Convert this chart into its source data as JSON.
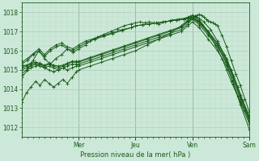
{
  "xlabel": "Pression niveau de la mer( hPa )",
  "bg_color": "#cce8d8",
  "grid_color_major": "#aaccbb",
  "grid_color_minor": "#bbddc9",
  "line_color": "#1a5c1a",
  "ylim": [
    1011.5,
    1018.5
  ],
  "xlim": [
    0.0,
    1.0
  ],
  "day_labels": [
    "Mer",
    "Jeu",
    "Ven",
    "Sam"
  ],
  "day_positions": [
    0.25,
    0.5,
    0.75,
    1.0
  ],
  "lines": [
    {
      "x": [
        0.0,
        0.02,
        0.04,
        0.06,
        0.08,
        0.1,
        0.12,
        0.14,
        0.16,
        0.18,
        0.2,
        0.22,
        0.24,
        0.25,
        0.3,
        0.35,
        0.4,
        0.45,
        0.5,
        0.55,
        0.6,
        0.65,
        0.7,
        0.73,
        0.75,
        0.78,
        0.82,
        0.86,
        0.9,
        0.93,
        0.96,
        1.0
      ],
      "y": [
        1013.3,
        1013.8,
        1014.1,
        1014.4,
        1014.2,
        1014.5,
        1014.3,
        1014.1,
        1014.3,
        1014.5,
        1014.3,
        1014.6,
        1014.9,
        1015.0,
        1015.2,
        1015.4,
        1015.6,
        1015.8,
        1016.0,
        1016.3,
        1016.6,
        1016.9,
        1017.3,
        1017.6,
        1017.85,
        1017.6,
        1017.0,
        1016.3,
        1015.3,
        1014.3,
        1013.2,
        1011.9
      ]
    },
    {
      "x": [
        0.0,
        0.02,
        0.04,
        0.06,
        0.08,
        0.1,
        0.12,
        0.14,
        0.16,
        0.18,
        0.2,
        0.22,
        0.24,
        0.25,
        0.3,
        0.35,
        0.4,
        0.45,
        0.5,
        0.55,
        0.6,
        0.65,
        0.7,
        0.73,
        0.75,
        0.78,
        0.82,
        0.86,
        0.9,
        0.93,
        0.96,
        1.0
      ],
      "y": [
        1014.8,
        1015.0,
        1015.1,
        1015.2,
        1015.3,
        1015.1,
        1015.0,
        1014.9,
        1015.0,
        1015.1,
        1015.0,
        1015.1,
        1015.2,
        1015.2,
        1015.4,
        1015.6,
        1015.8,
        1016.0,
        1016.2,
        1016.4,
        1016.6,
        1016.8,
        1017.0,
        1017.3,
        1017.5,
        1017.2,
        1016.6,
        1016.0,
        1015.2,
        1014.3,
        1013.3,
        1012.2
      ]
    },
    {
      "x": [
        0.0,
        0.02,
        0.04,
        0.06,
        0.08,
        0.1,
        0.12,
        0.14,
        0.16,
        0.18,
        0.2,
        0.22,
        0.24,
        0.25,
        0.3,
        0.35,
        0.4,
        0.45,
        0.5,
        0.55,
        0.6,
        0.65,
        0.7,
        0.73,
        0.75,
        0.78,
        0.82,
        0.86,
        0.9,
        0.93,
        0.96,
        1.0
      ],
      "y": [
        1015.0,
        1015.1,
        1015.2,
        1015.3,
        1015.2,
        1015.1,
        1015.2,
        1015.1,
        1015.0,
        1015.1,
        1015.2,
        1015.3,
        1015.3,
        1015.3,
        1015.5,
        1015.7,
        1015.9,
        1016.1,
        1016.3,
        1016.5,
        1016.7,
        1016.9,
        1017.1,
        1017.4,
        1017.65,
        1017.35,
        1016.8,
        1016.2,
        1015.4,
        1014.5,
        1013.5,
        1012.4
      ]
    },
    {
      "x": [
        0.0,
        0.02,
        0.04,
        0.06,
        0.08,
        0.1,
        0.12,
        0.14,
        0.16,
        0.18,
        0.2,
        0.22,
        0.24,
        0.25,
        0.3,
        0.35,
        0.4,
        0.45,
        0.5,
        0.55,
        0.6,
        0.65,
        0.7,
        0.73,
        0.75,
        0.78,
        0.82,
        0.86,
        0.9,
        0.93,
        0.96,
        1.0
      ],
      "y": [
        1015.1,
        1015.2,
        1015.3,
        1015.35,
        1015.3,
        1015.2,
        1015.3,
        1015.2,
        1015.1,
        1015.2,
        1015.3,
        1015.4,
        1015.4,
        1015.4,
        1015.6,
        1015.8,
        1016.0,
        1016.2,
        1016.4,
        1016.6,
        1016.8,
        1017.0,
        1017.2,
        1017.5,
        1017.7,
        1017.45,
        1016.9,
        1016.3,
        1015.5,
        1014.6,
        1013.6,
        1012.5
      ]
    },
    {
      "x": [
        0.0,
        0.02,
        0.04,
        0.06,
        0.08,
        0.1,
        0.12,
        0.14,
        0.16,
        0.18,
        0.2,
        0.22,
        0.24,
        0.25,
        0.3,
        0.35,
        0.4,
        0.45,
        0.5,
        0.55,
        0.6,
        0.65,
        0.7,
        0.73,
        0.75,
        0.78,
        0.82,
        0.86,
        0.9,
        0.93,
        0.96,
        1.0
      ],
      "y": [
        1015.2,
        1015.25,
        1015.35,
        1015.4,
        1015.35,
        1015.25,
        1015.35,
        1015.25,
        1015.2,
        1015.25,
        1015.35,
        1015.45,
        1015.45,
        1015.45,
        1015.65,
        1015.85,
        1016.05,
        1016.25,
        1016.45,
        1016.65,
        1016.85,
        1017.05,
        1017.25,
        1017.55,
        1017.75,
        1017.5,
        1017.0,
        1016.4,
        1015.6,
        1014.7,
        1013.7,
        1012.6
      ]
    },
    {
      "x": [
        0.0,
        0.025,
        0.05,
        0.075,
        0.1,
        0.125,
        0.15,
        0.175,
        0.2,
        0.225,
        0.25,
        0.28,
        0.3,
        0.33,
        0.36,
        0.39,
        0.42,
        0.45,
        0.48,
        0.5,
        0.52,
        0.54,
        0.56,
        0.58,
        0.6,
        0.63,
        0.66,
        0.69,
        0.72,
        0.73,
        0.74,
        0.75,
        0.76,
        0.77,
        0.78,
        0.8,
        0.83,
        0.86,
        0.89,
        0.92,
        0.95,
        0.97,
        1.0
      ],
      "y": [
        1014.6,
        1015.0,
        1015.5,
        1016.0,
        1015.6,
        1015.3,
        1015.6,
        1015.8,
        1016.1,
        1015.9,
        1016.1,
        1016.3,
        1016.5,
        1016.7,
        1016.85,
        1017.0,
        1017.15,
        1017.3,
        1017.4,
        1017.45,
        1017.5,
        1017.45,
        1017.5,
        1017.45,
        1017.4,
        1017.5,
        1017.6,
        1017.65,
        1017.7,
        1017.75,
        1017.8,
        1017.85,
        1017.8,
        1017.75,
        1017.7,
        1017.5,
        1017.1,
        1016.5,
        1015.8,
        1015.0,
        1014.1,
        1013.4,
        1012.5
      ]
    },
    {
      "x": [
        0.0,
        0.025,
        0.05,
        0.075,
        0.1,
        0.125,
        0.15,
        0.175,
        0.2,
        0.225,
        0.25,
        0.28,
        0.32,
        0.36,
        0.4,
        0.44,
        0.48,
        0.5,
        0.53,
        0.56,
        0.59,
        0.62,
        0.65,
        0.68,
        0.71,
        0.73,
        0.75,
        0.76,
        0.77,
        0.78,
        0.79,
        0.8,
        0.81,
        0.82,
        0.83,
        0.84,
        0.85,
        0.86,
        0.88,
        0.9,
        0.92,
        0.94,
        0.96,
        0.98,
        1.0
      ],
      "y": [
        1015.3,
        1015.5,
        1015.8,
        1016.0,
        1015.7,
        1016.0,
        1016.2,
        1016.3,
        1016.1,
        1016.0,
        1016.2,
        1016.4,
        1016.6,
        1016.75,
        1016.9,
        1017.05,
        1017.2,
        1017.3,
        1017.35,
        1017.4,
        1017.45,
        1017.5,
        1017.55,
        1017.6,
        1017.65,
        1017.7,
        1017.75,
        1017.8,
        1017.85,
        1017.9,
        1017.85,
        1017.75,
        1017.65,
        1017.55,
        1017.5,
        1017.45,
        1017.4,
        1017.3,
        1016.8,
        1016.2,
        1015.5,
        1014.8,
        1014.2,
        1013.5,
        1012.8
      ]
    },
    {
      "x": [
        0.0,
        0.025,
        0.05,
        0.075,
        0.1,
        0.125,
        0.15,
        0.175,
        0.2,
        0.225,
        0.25,
        0.28,
        0.32,
        0.36,
        0.4,
        0.44,
        0.48,
        0.5,
        0.53,
        0.56,
        0.59,
        0.62,
        0.65,
        0.68,
        0.71,
        0.73,
        0.75,
        0.77,
        0.79,
        0.82,
        0.85,
        0.88,
        0.9,
        0.92,
        0.95,
        0.98,
        1.0
      ],
      "y": [
        1015.4,
        1015.6,
        1015.85,
        1016.1,
        1015.8,
        1016.1,
        1016.3,
        1016.4,
        1016.2,
        1016.1,
        1016.3,
        1016.5,
        1016.65,
        1016.8,
        1016.95,
        1017.1,
        1017.2,
        1017.3,
        1017.35,
        1017.4,
        1017.45,
        1017.5,
        1017.55,
        1017.6,
        1017.65,
        1017.7,
        1017.75,
        1017.6,
        1017.4,
        1016.9,
        1016.3,
        1015.6,
        1015.0,
        1014.4,
        1013.6,
        1012.9,
        1012.3
      ]
    }
  ]
}
